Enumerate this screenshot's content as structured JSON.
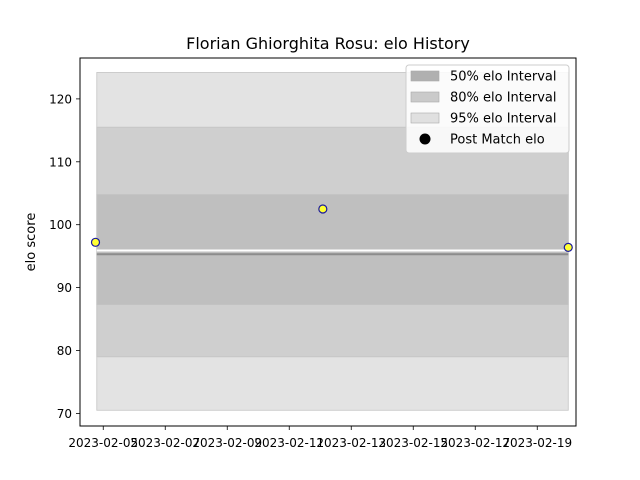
{
  "chart_data": {
    "type": "scatter",
    "title": "Florian Ghiorghita  Rosu: elo History",
    "xlabel": "",
    "ylabel": "elo score",
    "xlim": [
      "2023-02-04T06:00",
      "2023-02-20T06:00"
    ],
    "ylim": [
      68,
      126.5
    ],
    "x_ticks": [
      "2023-02-05",
      "2023-02-07",
      "2023-02-09",
      "2023-02-11",
      "2023-02-13",
      "2023-02-15",
      "2023-02-17",
      "2023-02-19"
    ],
    "y_ticks": [
      70,
      80,
      90,
      100,
      110,
      120
    ],
    "grid": false,
    "legend_position": "upper right",
    "bands": [
      {
        "name": "95% elo Interval",
        "x": [
          "2023-02-04T19:00",
          "2023-02-20T00:00"
        ],
        "lower": 70.5,
        "upper": 124.2,
        "color": "#e3e3e3"
      },
      {
        "name": "80% elo Interval",
        "x": [
          "2023-02-04T19:00",
          "2023-02-20T00:00"
        ],
        "lower": 79.0,
        "upper": 115.5,
        "color": "#cfcfcf"
      },
      {
        "name": "50% elo Interval",
        "x": [
          "2023-02-04T19:00",
          "2023-02-20T00:00"
        ],
        "lower": 87.3,
        "upper": 104.8,
        "color": "#bfbfbf"
      }
    ],
    "lines": [
      {
        "x": [
          "2023-02-04T19:00",
          "2023-02-20T00:00"
        ],
        "y": [
          95.9,
          95.9
        ],
        "color": "#ffffff",
        "width": 2
      },
      {
        "x": [
          "2023-02-04T19:00",
          "2023-02-20T00:00"
        ],
        "y": [
          95.3,
          95.3
        ],
        "color": "#8c8c8c",
        "width": 2
      }
    ],
    "series": [
      {
        "name": "Post Match elo",
        "x": [
          "2023-02-04T18:00",
          "2023-02-12T02:00",
          "2023-02-20T00:00"
        ],
        "y": [
          97.2,
          102.5,
          96.4
        ],
        "color": "#ffff33",
        "edge_color": "#1a1a9e"
      }
    ],
    "legend": [
      {
        "label": "50% elo Interval",
        "kind": "patch",
        "color": "#b0b0b0"
      },
      {
        "label": "80% elo Interval",
        "kind": "patch",
        "color": "#cacaca"
      },
      {
        "label": "95% elo Interval",
        "kind": "patch",
        "color": "#e0e0e0"
      },
      {
        "label": "Post Match elo",
        "kind": "marker",
        "color": "#000000"
      }
    ]
  }
}
